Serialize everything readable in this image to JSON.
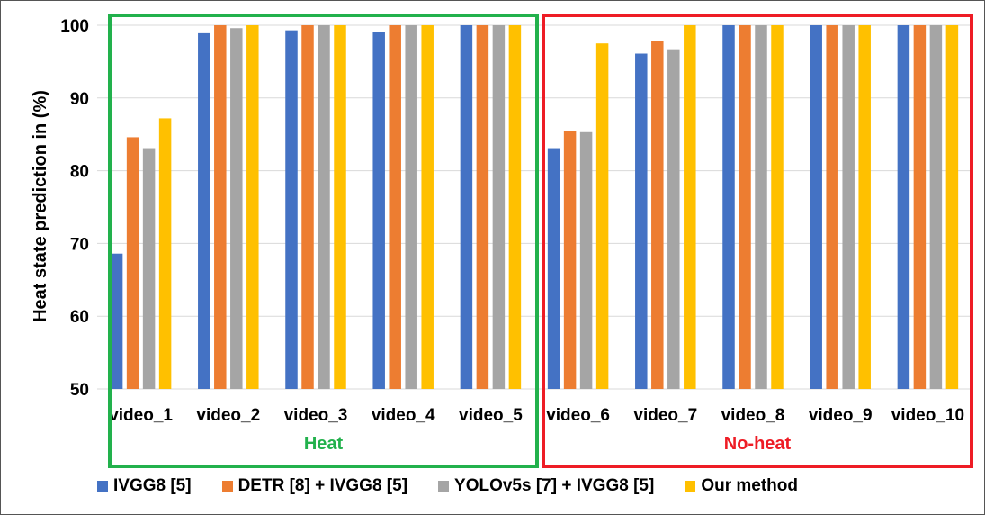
{
  "chart_data": {
    "type": "bar",
    "title": "",
    "xlabel": "",
    "ylabel": "Heat state prediction in (%)",
    "ylim": [
      50,
      100
    ],
    "yticks": [
      50,
      60,
      70,
      80,
      90,
      100
    ],
    "grid": true,
    "legend_position": "bottom",
    "categories": [
      "video_1",
      "video_2",
      "video_3",
      "video_4",
      "video_5",
      "video_6",
      "video_7",
      "video_8",
      "video_9",
      "video_10"
    ],
    "series": [
      {
        "name": "IVGG8 [5]",
        "color": "#4472C4",
        "values": [
          68.6,
          98.9,
          99.3,
          99.1,
          100,
          83.1,
          96.1,
          100,
          100,
          100
        ]
      },
      {
        "name": "DETR [8] + IVGG8 [5]",
        "color": "#ED7D31",
        "values": [
          84.6,
          100,
          100,
          100,
          100,
          85.5,
          97.8,
          100,
          100,
          100
        ]
      },
      {
        "name": "YOLOv5s [7] + IVGG8 [5]",
        "color": "#A5A5A5",
        "values": [
          83.1,
          99.6,
          100,
          100,
          100,
          85.3,
          96.7,
          100,
          100,
          100
        ]
      },
      {
        "name": "Our method",
        "color": "#FFC000",
        "values": [
          87.2,
          100,
          100,
          100,
          100,
          97.5,
          100,
          100,
          100,
          100
        ]
      }
    ],
    "groups": [
      {
        "label": "Heat",
        "categories": [
          "video_1",
          "video_2",
          "video_3",
          "video_4",
          "video_5"
        ],
        "color": "#22B14C"
      },
      {
        "label": "No-heat",
        "categories": [
          "video_6",
          "video_7",
          "video_8",
          "video_9",
          "video_10"
        ],
        "color": "#EE1C25"
      }
    ]
  }
}
